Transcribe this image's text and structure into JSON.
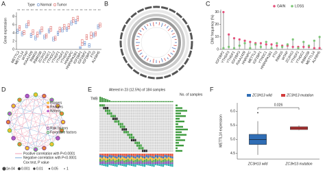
{
  "chart_data": [
    {
      "type": "box",
      "label": "A",
      "legend_title": "Type",
      "ylabel": "Gene expression",
      "ylim": [
        0,
        9
      ],
      "yticks": [
        0,
        2,
        4,
        6,
        8
      ],
      "categories": [
        "METTL3",
        "METTL14",
        "WTAP",
        "KIAA1429",
        "RBM15",
        "RBM15B",
        "ZC3H13",
        "YTHDC1",
        "YTHDC2",
        "YTHDF1",
        "YTHDF2",
        "YTHDF3",
        "HNRNPC",
        "HNRNPA2B1",
        "IGF2BP1",
        "IGF2BP2",
        "IGF2BP3",
        "FTO",
        "ALKBH5"
      ],
      "significance": [
        "***",
        "***",
        "***",
        "***",
        "***",
        "***",
        "***",
        "***",
        "**",
        "***",
        "***",
        "***",
        "***",
        "***",
        "***",
        "***",
        "***",
        "***",
        "***"
      ],
      "series": [
        {
          "name": "Normal",
          "color": "#4a78c2",
          "q1": [
            3.9,
            3.3,
            5.2,
            2.9,
            2.3,
            3.7,
            2.5,
            4.0,
            2.0,
            3.4,
            4.2,
            4.4,
            5.9,
            6.2,
            0.2,
            1.0,
            0.5,
            3.0,
            5.0
          ],
          "median": [
            4.4,
            3.8,
            5.7,
            3.4,
            2.8,
            4.2,
            3.0,
            4.5,
            2.5,
            3.9,
            4.7,
            4.9,
            6.4,
            6.7,
            0.4,
            1.4,
            0.9,
            3.5,
            5.5
          ],
          "q3": [
            4.9,
            4.3,
            6.2,
            3.9,
            3.3,
            4.7,
            3.5,
            5.0,
            3.0,
            4.4,
            5.2,
            5.4,
            6.9,
            7.2,
            0.7,
            1.9,
            1.4,
            4.0,
            6.0
          ]
        },
        {
          "name": "Tumor",
          "color": "#d9534f",
          "q1": [
            4.6,
            3.6,
            5.8,
            3.6,
            3.0,
            4.3,
            2.8,
            4.4,
            2.2,
            4.2,
            4.9,
            5.0,
            6.6,
            6.9,
            0.9,
            2.4,
            2.6,
            3.3,
            5.4
          ],
          "median": [
            5.2,
            4.1,
            6.4,
            4.2,
            3.6,
            4.9,
            3.3,
            5.0,
            2.7,
            4.8,
            5.5,
            5.6,
            7.2,
            7.5,
            1.6,
            3.0,
            3.4,
            3.8,
            5.9
          ],
          "q3": [
            5.8,
            4.6,
            7.0,
            4.8,
            4.2,
            5.5,
            3.8,
            5.6,
            3.2,
            5.4,
            6.1,
            6.2,
            7.8,
            8.1,
            2.4,
            3.6,
            4.2,
            4.3,
            6.4
          ]
        }
      ]
    },
    {
      "type": "circos",
      "label": "B"
    },
    {
      "type": "lollipop",
      "label": "C",
      "ylabel": "CNV frequency (%)",
      "ylim": [
        0,
        32
      ],
      "yticks": [
        0,
        10,
        20,
        30
      ],
      "categories": [
        "IGF2BP2",
        "YTHDF3",
        "YTHDF1",
        "IGF2BP3",
        "KIAA1429",
        "HNRNPC",
        "METTL3",
        "IGF2BP1",
        "YTHDC1",
        "HNRNPA2B1",
        "FTO",
        "RBM15",
        "WTAP",
        "ZC3H13",
        "YTHDF2",
        "YTHDC2",
        "RBM15B",
        "METTL14",
        "ALKBH5"
      ],
      "series": [
        {
          "name": "GAIN",
          "color": "#e4507a",
          "values": [
            30,
            12,
            9,
            8,
            7,
            6,
            5,
            5,
            4,
            4,
            3,
            3,
            3,
            2,
            2,
            2,
            2,
            1,
            1
          ]
        },
        {
          "name": "LOSS",
          "color": "#7cc576",
          "values": [
            1,
            2,
            1,
            3,
            5,
            1,
            4,
            2,
            6,
            1,
            5,
            2,
            4,
            8,
            1,
            6,
            3,
            7,
            10
          ]
        }
      ]
    },
    {
      "type": "network",
      "label": "D",
      "legend": [
        {
          "name": "Erasers",
          "color": "#f2c12e"
        },
        {
          "name": "Readers",
          "color": "#e8823a"
        },
        {
          "name": "Writers",
          "color": "#b05ac9"
        }
      ],
      "factors": [
        {
          "name": "Risk factors",
          "color": "#7a3b8f"
        },
        {
          "name": "Favorable factors",
          "color": "#4caf50"
        }
      ],
      "correlation": [
        {
          "name": "Positive correlation with P<0.0001",
          "color": "#f2a0b4"
        },
        {
          "name": "Negative correlation with P<0.0001",
          "color": "#7aa7d6"
        }
      ],
      "pvalue_title": "Cox test, P value",
      "pvalue_labels": [
        "1e-04",
        "0.001",
        "0.01",
        "0.05",
        "1"
      ]
    },
    {
      "type": "oncoprint",
      "label": "E",
      "title": "Altered in 23 (12.5%) of 184 samples",
      "side_title": "No. of samples",
      "top_label": "TMB"
    },
    {
      "type": "box",
      "label": "F",
      "ylabel": "METTL14 expression",
      "annotation": "0.026",
      "ylim": [
        4.3,
        6.3
      ],
      "yticks": [
        4.5,
        {
          "value": 5,
          "label": "5.0"
        },
        5.5,
        {
          "value": 6,
          "label": "6.0"
        }
      ],
      "categories": [
        "ZC3H13 wild",
        "ZC3H13 mutation"
      ],
      "series": [
        {
          "name": "ZC3H13 wild",
          "color": "#2f6db5",
          "low": [
            4.45,
            null
          ],
          "q1": [
            4.82,
            null
          ],
          "median": [
            5.0,
            null
          ],
          "q3": [
            5.18,
            null
          ],
          "high": [
            5.65,
            null
          ],
          "outliers": [
            5.95
          ]
        },
        {
          "name": "ZC3H13 mutation",
          "color": "#d23b3b",
          "low": [
            null,
            5.33
          ],
          "q1": [
            null,
            5.35
          ],
          "median": [
            null,
            5.4
          ],
          "q3": [
            null,
            5.45
          ],
          "high": [
            null,
            5.5
          ],
          "outliers": []
        }
      ]
    }
  ]
}
